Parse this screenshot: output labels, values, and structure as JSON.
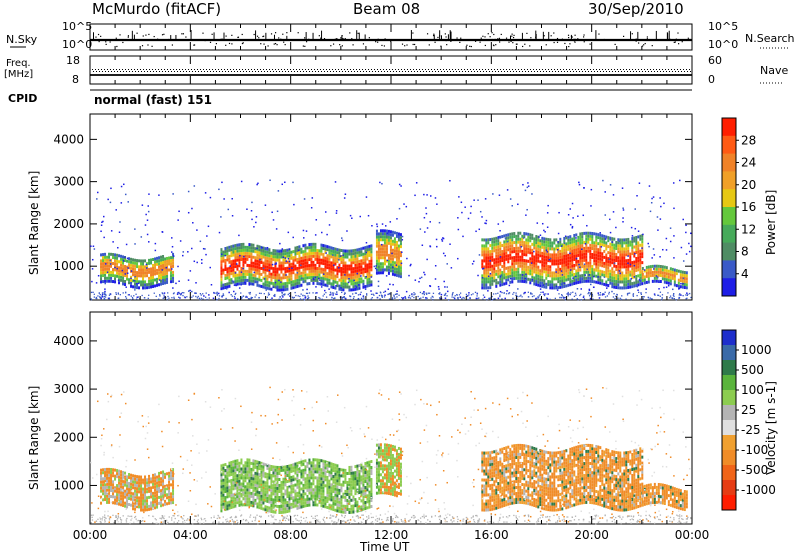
{
  "header": {
    "station": "McMurdo (fitACF)",
    "beam": "Beam 08",
    "date": "30/Sep/2010"
  },
  "top_panels": {
    "nsky_label": "N.Sky",
    "nsky_ticks": [
      "10^5",
      "10^0"
    ],
    "nsearch_label": "N.Search",
    "nsearch_ticks": [
      "10^5",
      "10^0"
    ],
    "freq_label": "Freq.",
    "freq_unit": "[MHz]",
    "freq_ticks": [
      "18",
      "8"
    ],
    "nave_label": "Nave",
    "nave_ticks": [
      "60",
      "0"
    ],
    "cpid_label": "CPID",
    "cpid_value": "normal (fast) 151"
  },
  "colors": {
    "power_scale": [
      "#1e1ee6",
      "#3a5ac8",
      "#4f8c64",
      "#46aa5a",
      "#64c83c",
      "#e6c814",
      "#f0a028",
      "#f08228",
      "#ff5a14",
      "#ff1e00"
    ],
    "velocity_scale": [
      "#1e2ecc",
      "#3a6aa8",
      "#2f7a4a",
      "#5ab43c",
      "#8ccc50",
      "#b4b4b4",
      "#e0e0e0",
      "#f0a030",
      "#f08c28",
      "#f06418",
      "#e63c14",
      "#ff1e00"
    ]
  },
  "chart_data": [
    {
      "type": "heatmap",
      "name": "Power panel",
      "ylabel": "Slant Range [km]",
      "y_ticks": [
        "1000",
        "2000",
        "3000",
        "4000"
      ],
      "ylim": [
        200,
        4600
      ],
      "xlim": [
        0,
        24
      ],
      "colorbar_label": "Power [dB]",
      "colorbar_ticks": [
        "4",
        "8",
        "12",
        "16",
        "20",
        "24",
        "28"
      ],
      "features": [
        {
          "t0": 0.4,
          "t1": 3.3,
          "r0": 600,
          "r1": 1300,
          "level": "mid"
        },
        {
          "t0": 5.2,
          "t1": 11.2,
          "r0": 550,
          "r1": 1500,
          "level": "high"
        },
        {
          "t0": 11.4,
          "t1": 12.4,
          "r0": 800,
          "r1": 1800,
          "level": "mid"
        },
        {
          "t0": 15.6,
          "t1": 22.0,
          "r0": 600,
          "r1": 1800,
          "level": "high"
        },
        {
          "t0": 22.0,
          "t1": 23.8,
          "r0": 600,
          "r1": 1000,
          "level": "mid"
        }
      ]
    },
    {
      "type": "heatmap",
      "name": "Velocity panel",
      "ylabel": "Slant Range [km]",
      "y_ticks": [
        "1000",
        "2000",
        "3000",
        "4000"
      ],
      "ylim": [
        200,
        4600
      ],
      "xlim": [
        0,
        24
      ],
      "colorbar_label": "Velocity [m s-1]",
      "colorbar_ticks": [
        "1000",
        "500",
        "100",
        "25",
        "-25",
        "-100",
        "-500",
        "-1000"
      ],
      "x_ticks": [
        "00:00",
        "04:00",
        "08:00",
        "12:00",
        "16:00",
        "20:00",
        "00:00"
      ],
      "xlabel": "Time UT"
    }
  ]
}
